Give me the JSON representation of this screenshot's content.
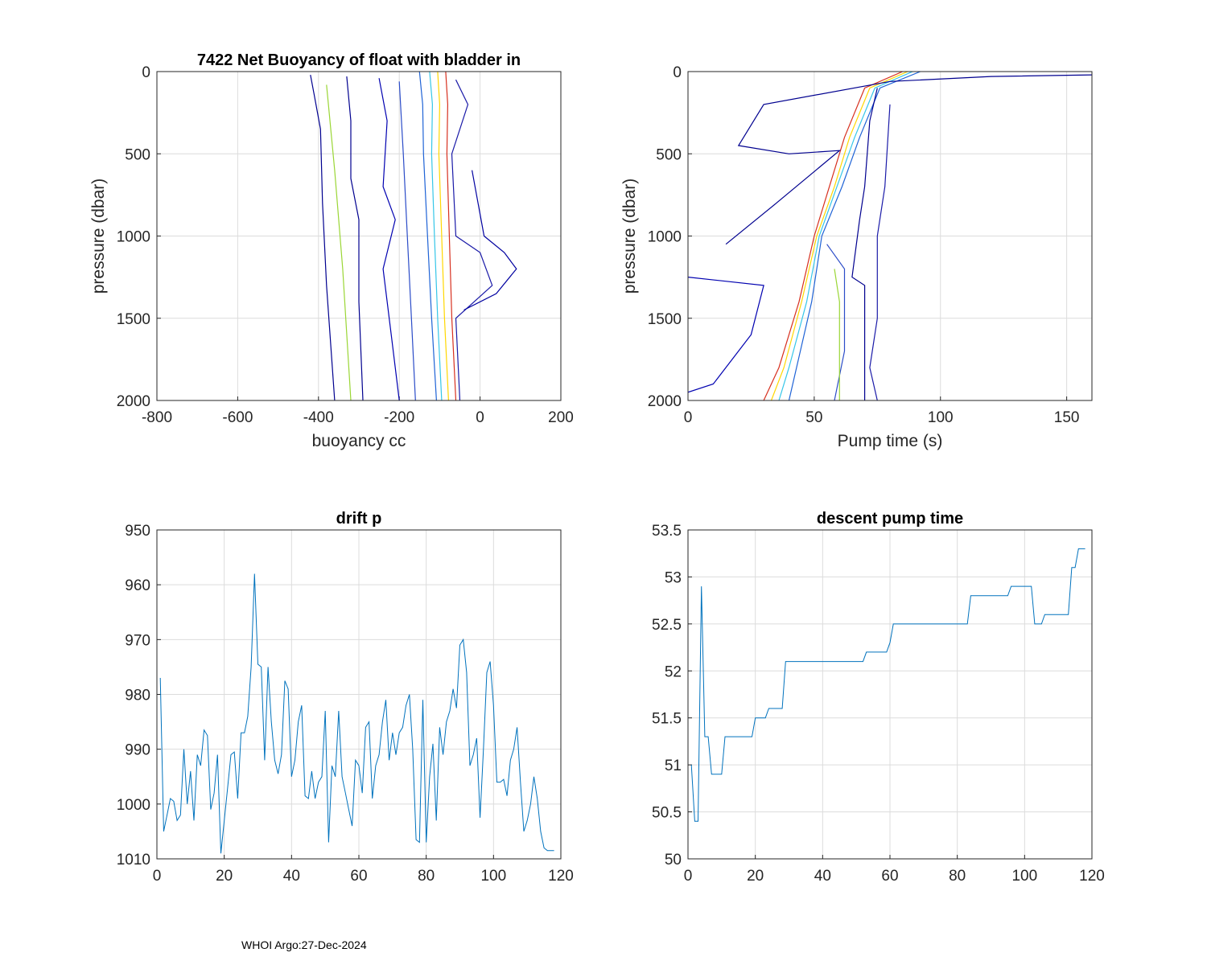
{
  "footer_text": "WHOI Argo:27-Dec-2024",
  "colors": {
    "line": "#0072BD",
    "grid": "#dcdcdc",
    "axis": "#262626"
  },
  "chart_data": [
    {
      "id": "buoyancy",
      "type": "line",
      "title": "7422 Net Buoyancy of float with bladder in",
      "xlabel": "buoyancy cc",
      "ylabel": "pressure (dbar)",
      "xlim": [
        -800,
        200
      ],
      "ylim": [
        0,
        2000
      ],
      "y_reversed": true,
      "xticks": [
        "-800",
        "-600",
        "-400",
        "-200",
        "0",
        "200"
      ],
      "yticks": [
        "0",
        "500",
        "1000",
        "1500",
        "2000"
      ],
      "series_note": "many profiles colored by cycle (jet colormap, blue=early, red=late)",
      "series": [
        {
          "name": "main-bundle-late",
          "color": "#d7301f",
          "points": [
            [
              -85,
              0
            ],
            [
              -80,
              200
            ],
            [
              -82,
              500
            ],
            [
              -76,
              1000
            ],
            [
              -70,
              1500
            ],
            [
              -60,
              2000
            ]
          ]
        },
        {
          "name": "main-bundle-mid",
          "color": "#ffd700",
          "points": [
            [
              -105,
              0
            ],
            [
              -100,
              200
            ],
            [
              -102,
              500
            ],
            [
              -95,
              1000
            ],
            [
              -88,
              1500
            ],
            [
              -78,
              2000
            ]
          ]
        },
        {
          "name": "main-bundle-cyan",
          "color": "#35c6e8",
          "points": [
            [
              -125,
              0
            ],
            [
              -118,
              200
            ],
            [
              -120,
              500
            ],
            [
              -113,
              1000
            ],
            [
              -105,
              1500
            ],
            [
              -95,
              2000
            ]
          ]
        },
        {
          "name": "main-bundle-early",
          "color": "#1f63d6",
          "points": [
            [
              -150,
              0
            ],
            [
              -142,
              200
            ],
            [
              -140,
              500
            ],
            [
              -130,
              1000
            ],
            [
              -120,
              1500
            ],
            [
              -108,
              2000
            ]
          ]
        },
        {
          "name": "outlier-1",
          "color": "#00008f",
          "points": [
            [
              -420,
              20
            ],
            [
              -410,
              150
            ],
            [
              -395,
              350
            ],
            [
              -390,
              800
            ],
            [
              -380,
              1300
            ],
            [
              -360,
              2000
            ]
          ]
        },
        {
          "name": "outlier-2",
          "color": "#00008f",
          "points": [
            [
              -330,
              30
            ],
            [
              -320,
              300
            ],
            [
              -320,
              650
            ],
            [
              -300,
              900
            ],
            [
              -300,
              1400
            ],
            [
              -290,
              2000
            ]
          ]
        },
        {
          "name": "outlier-3",
          "color": "#1a1aa8",
          "points": [
            [
              -60,
              50
            ],
            [
              -30,
              200
            ],
            [
              -70,
              500
            ],
            [
              -60,
              1000
            ],
            [
              0,
              1100
            ],
            [
              30,
              1300
            ],
            [
              -60,
              1500
            ],
            [
              -50,
              2000
            ]
          ]
        },
        {
          "name": "outlier-4",
          "color": "#0000b0",
          "points": [
            [
              -250,
              40
            ],
            [
              -230,
              300
            ],
            [
              -240,
              700
            ],
            [
              -210,
              900
            ],
            [
              -240,
              1200
            ],
            [
              -220,
              1600
            ],
            [
              -200,
              2000
            ]
          ]
        },
        {
          "name": "outlier-5",
          "color": "#2b4cc8",
          "points": [
            [
              -200,
              60
            ],
            [
              -190,
              500
            ],
            [
              -180,
              1000
            ],
            [
              -170,
              1500
            ],
            [
              -160,
              2000
            ]
          ]
        },
        {
          "name": "outlier-6",
          "color": "#9ad635",
          "points": [
            [
              -380,
              80
            ],
            [
              -360,
              600
            ],
            [
              -340,
              1200
            ],
            [
              -320,
              2000
            ]
          ]
        },
        {
          "name": "outlier-7",
          "color": "#0000a0",
          "points": [
            [
              -20,
              600
            ],
            [
              10,
              1000
            ],
            [
              60,
              1100
            ],
            [
              90,
              1200
            ],
            [
              40,
              1350
            ],
            [
              -40,
              1450
            ]
          ]
        }
      ]
    },
    {
      "id": "pumptime",
      "type": "line",
      "title": "",
      "xlabel": "Pump time (s)",
      "ylabel": "pressure (dbar)",
      "xlim": [
        0,
        160
      ],
      "ylim": [
        0,
        2000
      ],
      "y_reversed": true,
      "xticks": [
        "0",
        "50",
        "100",
        "150"
      ],
      "yticks": [
        "0",
        "500",
        "1000",
        "1500",
        "2000"
      ],
      "series_note": "many profiles colored by cycle (jet colormap)",
      "series": [
        {
          "name": "main-bundle-late",
          "color": "#d7301f",
          "points": [
            [
              85,
              0
            ],
            [
              70,
              100
            ],
            [
              62,
              400
            ],
            [
              56,
              700
            ],
            [
              50,
              1000
            ],
            [
              44,
              1400
            ],
            [
              36,
              1800
            ],
            [
              30,
              2000
            ]
          ]
        },
        {
          "name": "main-bundle-mid",
          "color": "#ffd700",
          "points": [
            [
              87,
              0
            ],
            [
              72,
              100
            ],
            [
              64,
              400
            ],
            [
              58,
              700
            ],
            [
              51,
              1000
            ],
            [
              45,
              1400
            ],
            [
              38,
              1800
            ],
            [
              33,
              2000
            ]
          ]
        },
        {
          "name": "main-bundle-cyan",
          "color": "#35c6e8",
          "points": [
            [
              89,
              0
            ],
            [
              74,
              100
            ],
            [
              66,
              400
            ],
            [
              59,
              700
            ],
            [
              52,
              1000
            ],
            [
              47,
              1400
            ],
            [
              40,
              1800
            ],
            [
              36,
              2000
            ]
          ]
        },
        {
          "name": "main-bundle-early",
          "color": "#1f63d6",
          "points": [
            [
              92,
              0
            ],
            [
              76,
              100
            ],
            [
              68,
              400
            ],
            [
              61,
              700
            ],
            [
              53,
              1000
            ],
            [
              49,
              1400
            ],
            [
              43,
              1800
            ],
            [
              40,
              2000
            ]
          ]
        },
        {
          "name": "outlier-1",
          "color": "#00008f",
          "points": [
            [
              160,
              20
            ],
            [
              120,
              30
            ],
            [
              80,
              60
            ],
            [
              30,
              200
            ],
            [
              20,
              450
            ],
            [
              40,
              500
            ],
            [
              60,
              480
            ],
            [
              35,
              800
            ],
            [
              15,
              1050
            ]
          ]
        },
        {
          "name": "outlier-2",
          "color": "#00008f",
          "points": [
            [
              75,
              100
            ],
            [
              72,
              300
            ],
            [
              70,
              700
            ],
            [
              68,
              900
            ],
            [
              65,
              1250
            ],
            [
              70,
              1300
            ],
            [
              70,
              2000
            ]
          ]
        },
        {
          "name": "outlier-3",
          "color": "#0000b0",
          "points": [
            [
              0,
              1250
            ],
            [
              30,
              1300
            ],
            [
              25,
              1600
            ],
            [
              10,
              1900
            ],
            [
              0,
              1950
            ]
          ]
        },
        {
          "name": "outlier-4",
          "color": "#1a1aa8",
          "points": [
            [
              80,
              200
            ],
            [
              78,
              700
            ],
            [
              75,
              1000
            ],
            [
              75,
              1500
            ],
            [
              72,
              1800
            ],
            [
              75,
              2000
            ]
          ]
        },
        {
          "name": "outlier-5",
          "color": "#2b4cc8",
          "points": [
            [
              55,
              1050
            ],
            [
              62,
              1200
            ],
            [
              62,
              1700
            ],
            [
              58,
              2000
            ]
          ]
        },
        {
          "name": "outlier-6",
          "color": "#9ad635",
          "points": [
            [
              58,
              1200
            ],
            [
              60,
              1400
            ],
            [
              60,
              2000
            ]
          ]
        }
      ]
    },
    {
      "id": "driftp",
      "type": "line",
      "title": "drift p",
      "xlabel": "",
      "ylabel": "",
      "xlim": [
        0,
        120
      ],
      "ylim": [
        950,
        1010
      ],
      "y_reversed": true,
      "xticks": [
        "0",
        "20",
        "40",
        "60",
        "80",
        "100",
        "120"
      ],
      "yticks": [
        "950",
        "960",
        "970",
        "980",
        "990",
        "1000",
        "1010"
      ],
      "x": [
        1,
        2,
        3,
        4,
        5,
        6,
        7,
        8,
        9,
        10,
        11,
        12,
        13,
        14,
        15,
        16,
        17,
        18,
        19,
        20,
        21,
        22,
        23,
        24,
        25,
        26,
        27,
        28,
        29,
        30,
        31,
        32,
        33,
        34,
        35,
        36,
        37,
        38,
        39,
        40,
        41,
        42,
        43,
        44,
        45,
        46,
        47,
        48,
        49,
        50,
        51,
        52,
        53,
        54,
        55,
        56,
        57,
        58,
        59,
        60,
        61,
        62,
        63,
        64,
        65,
        66,
        67,
        68,
        69,
        70,
        71,
        72,
        73,
        74,
        75,
        76,
        77,
        78,
        79,
        80,
        81,
        82,
        83,
        84,
        85,
        86,
        87,
        88,
        89,
        90,
        91,
        92,
        93,
        94,
        95,
        96,
        97,
        98,
        99,
        100,
        101,
        102,
        103,
        104,
        105,
        106,
        107,
        108,
        109,
        110,
        111,
        112,
        113,
        114,
        115,
        116,
        117,
        118
      ],
      "values": [
        977,
        1005,
        1002,
        999,
        999.5,
        1003,
        1002,
        990,
        1000,
        994,
        1003,
        991,
        993,
        986.5,
        987.5,
        1001,
        998,
        991,
        1009,
        1003,
        997,
        991,
        990.5,
        999,
        987,
        987,
        984,
        975,
        958,
        974.5,
        975,
        992,
        975,
        985,
        992,
        994.5,
        991,
        977.5,
        979,
        995,
        992,
        985,
        982,
        998.5,
        999,
        994,
        999,
        996,
        995,
        983,
        1007,
        993,
        995,
        983,
        995,
        998,
        1001,
        1004,
        992,
        993,
        998,
        986,
        985,
        999,
        993,
        991,
        985,
        981,
        992,
        987,
        991,
        987,
        986,
        982,
        980,
        990,
        1006.5,
        1007,
        981,
        1007,
        995,
        989,
        1003,
        986,
        991,
        985,
        983,
        979,
        982.5,
        971,
        970,
        976,
        993,
        991,
        988,
        1002.5,
        990,
        976,
        974,
        982,
        996,
        996,
        995.5,
        998.5,
        992,
        990,
        986,
        996,
        1005,
        1003,
        1000,
        995,
        999,
        1005,
        1008,
        1008.5,
        1008.5,
        1008.5
      ]
    },
    {
      "id": "descentpump",
      "type": "line",
      "title": "descent pump time",
      "xlabel": "",
      "ylabel": "",
      "xlim": [
        0,
        120
      ],
      "ylim": [
        50,
        53.5
      ],
      "y_reversed": false,
      "xticks": [
        "0",
        "20",
        "40",
        "60",
        "80",
        "100",
        "120"
      ],
      "yticks": [
        "50",
        "50.5",
        "51",
        "51.5",
        "52",
        "52.5",
        "53",
        "53.5"
      ],
      "x": [
        1,
        2,
        3,
        4,
        5,
        6,
        7,
        8,
        9,
        10,
        11,
        12,
        13,
        14,
        15,
        16,
        17,
        18,
        19,
        20,
        21,
        22,
        23,
        24,
        25,
        26,
        27,
        28,
        29,
        30,
        31,
        32,
        33,
        34,
        35,
        36,
        37,
        38,
        39,
        40,
        41,
        42,
        43,
        44,
        45,
        46,
        47,
        48,
        49,
        50,
        51,
        52,
        53,
        54,
        55,
        56,
        57,
        58,
        59,
        60,
        61,
        62,
        63,
        64,
        65,
        66,
        67,
        68,
        69,
        70,
        71,
        72,
        73,
        74,
        75,
        76,
        77,
        78,
        79,
        80,
        81,
        82,
        83,
        84,
        85,
        86,
        87,
        88,
        89,
        90,
        91,
        92,
        93,
        94,
        95,
        96,
        97,
        98,
        99,
        100,
        101,
        102,
        103,
        104,
        105,
        106,
        107,
        108,
        109,
        110,
        111,
        112,
        113,
        114,
        115,
        116,
        117,
        118
      ],
      "values": [
        51,
        50.4,
        50.4,
        52.9,
        51.3,
        51.3,
        50.9,
        50.9,
        50.9,
        50.9,
        51.3,
        51.3,
        51.3,
        51.3,
        51.3,
        51.3,
        51.3,
        51.3,
        51.3,
        51.5,
        51.5,
        51.5,
        51.5,
        51.6,
        51.6,
        51.6,
        51.6,
        51.6,
        52.1,
        52.1,
        52.1,
        52.1,
        52.1,
        52.1,
        52.1,
        52.1,
        52.1,
        52.1,
        52.1,
        52.1,
        52.1,
        52.1,
        52.1,
        52.1,
        52.1,
        52.1,
        52.1,
        52.1,
        52.1,
        52.1,
        52.1,
        52.1,
        52.2,
        52.2,
        52.2,
        52.2,
        52.2,
        52.2,
        52.2,
        52.3,
        52.5,
        52.5,
        52.5,
        52.5,
        52.5,
        52.5,
        52.5,
        52.5,
        52.5,
        52.5,
        52.5,
        52.5,
        52.5,
        52.5,
        52.5,
        52.5,
        52.5,
        52.5,
        52.5,
        52.5,
        52.5,
        52.5,
        52.5,
        52.8,
        52.8,
        52.8,
        52.8,
        52.8,
        52.8,
        52.8,
        52.8,
        52.8,
        52.8,
        52.8,
        52.8,
        52.9,
        52.9,
        52.9,
        52.9,
        52.9,
        52.9,
        52.9,
        52.5,
        52.5,
        52.5,
        52.6,
        52.6,
        52.6,
        52.6,
        52.6,
        52.6,
        52.6,
        52.6,
        53.1,
        53.1,
        53.3,
        53.3,
        53.3
      ]
    }
  ]
}
